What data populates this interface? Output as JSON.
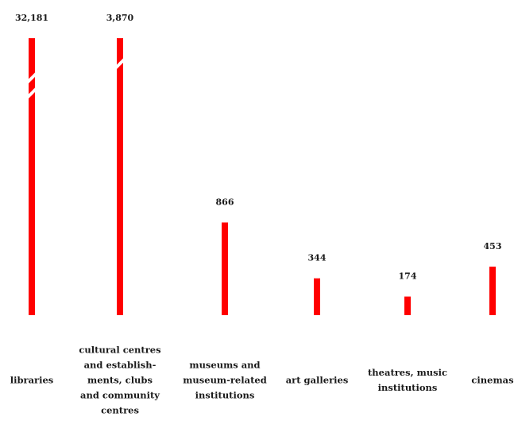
{
  "chart_data": {
    "type": "bar",
    "title": "",
    "xlabel": "",
    "ylabel": "",
    "categories": [
      "libraries",
      "cultural centres\nand establish-\nments, clubs\nand community\ncentres",
      "museums and\nmuseum-related\ninstitutions",
      "art galleries",
      "theatres, music\ninstitutions",
      "cinemas"
    ],
    "values": [
      32181,
      3870,
      866,
      344,
      174,
      453
    ],
    "value_labels": [
      "32,181",
      "3,870",
      "866",
      "344",
      "174",
      "453"
    ],
    "truncated": [
      true,
      true,
      false,
      false,
      false,
      false
    ],
    "bar_color": "#ff0000",
    "ylim": [
      0,
      1350
    ],
    "grid": false,
    "legend": "none"
  }
}
